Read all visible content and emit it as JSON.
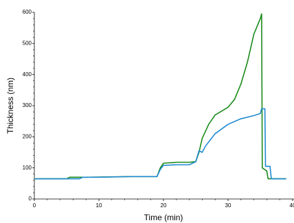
{
  "chart_data": {
    "type": "line",
    "xlabel": "Time (min)",
    "ylabel": "Thickness (nm)",
    "xlim": [
      0,
      40
    ],
    "xticks": [
      0,
      10,
      20,
      30,
      40
    ],
    "ylim": [
      0,
      600
    ],
    "yticks": [
      0,
      100,
      200,
      300,
      400,
      500,
      600
    ],
    "xminorticks": [
      2,
      4,
      6,
      8,
      12,
      14,
      16,
      18,
      22,
      24,
      26,
      28,
      32,
      34,
      36,
      38
    ],
    "yminorticks": [
      20,
      40,
      60,
      80,
      120,
      140,
      160,
      180,
      220,
      240,
      260,
      280,
      320,
      340,
      360,
      380,
      420,
      440,
      460,
      480,
      520,
      540,
      560,
      580
    ],
    "series": [
      {
        "name": "green",
        "color": "#1a8a1a",
        "x": [
          0,
          5,
          5.5,
          8,
          15,
          19,
          19.5,
          20,
          22,
          24,
          25,
          25.5,
          26,
          27,
          28,
          30,
          31,
          32,
          33,
          34,
          35,
          35.2,
          35.3,
          36,
          36.2,
          39
        ],
        "values": [
          65,
          65,
          70,
          70,
          72,
          72,
          100,
          115,
          118,
          118,
          120,
          150,
          195,
          240,
          270,
          295,
          320,
          370,
          440,
          530,
          580,
          595,
          100,
          90,
          65,
          65
        ]
      },
      {
        "name": "blue",
        "color": "#1f8ad0",
        "x": [
          0,
          7,
          7.5,
          10,
          15,
          19,
          19.5,
          20,
          22,
          24,
          25,
          25.5,
          26,
          26.5,
          28,
          30,
          32,
          34,
          35,
          35.2,
          35.7,
          35.8,
          36.5,
          36.7,
          39
        ],
        "values": [
          65,
          65,
          70,
          70,
          72,
          72,
          95,
          108,
          110,
          110,
          120,
          155,
          150,
          170,
          210,
          240,
          258,
          268,
          275,
          290,
          290,
          105,
          105,
          65,
          65
        ]
      }
    ]
  }
}
